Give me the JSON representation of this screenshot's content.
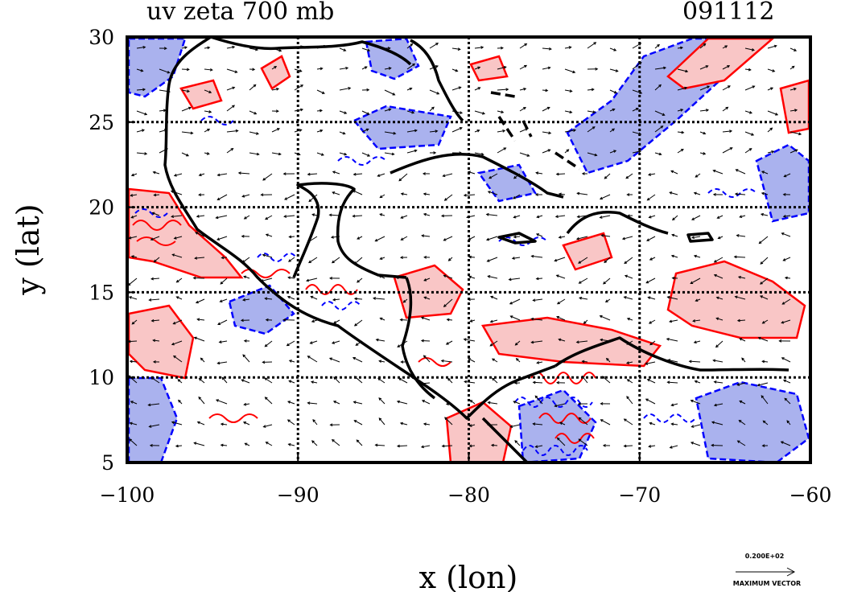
{
  "title_left": "uv zeta 700 mb",
  "title_right": "091112",
  "map": {
    "xlabel": "x (lon)",
    "ylabel": "y (lat)",
    "x_ticks": [
      -100,
      -90,
      -80,
      -70,
      -60
    ],
    "y_ticks": [
      5,
      10,
      15,
      20,
      25,
      30
    ],
    "x_tick_labels": [
      "−100",
      "−90",
      "−80",
      "−70",
      "−60"
    ],
    "y_tick_labels": [
      "5",
      "10",
      "15",
      "20",
      "25",
      "30"
    ],
    "lon_range": [
      -100,
      -60
    ],
    "lat_range": [
      5,
      30
    ],
    "grid": true
  },
  "reference_vector": {
    "value": "0.200E+02",
    "label": "MAXIMUM VECTOR"
  },
  "colors": {
    "positive_line": "#ff0000",
    "positive_fill": "#f9c6c6",
    "negative_line": "#0000ff",
    "negative_fill": "#aab2ee",
    "coast": "#000000"
  }
}
